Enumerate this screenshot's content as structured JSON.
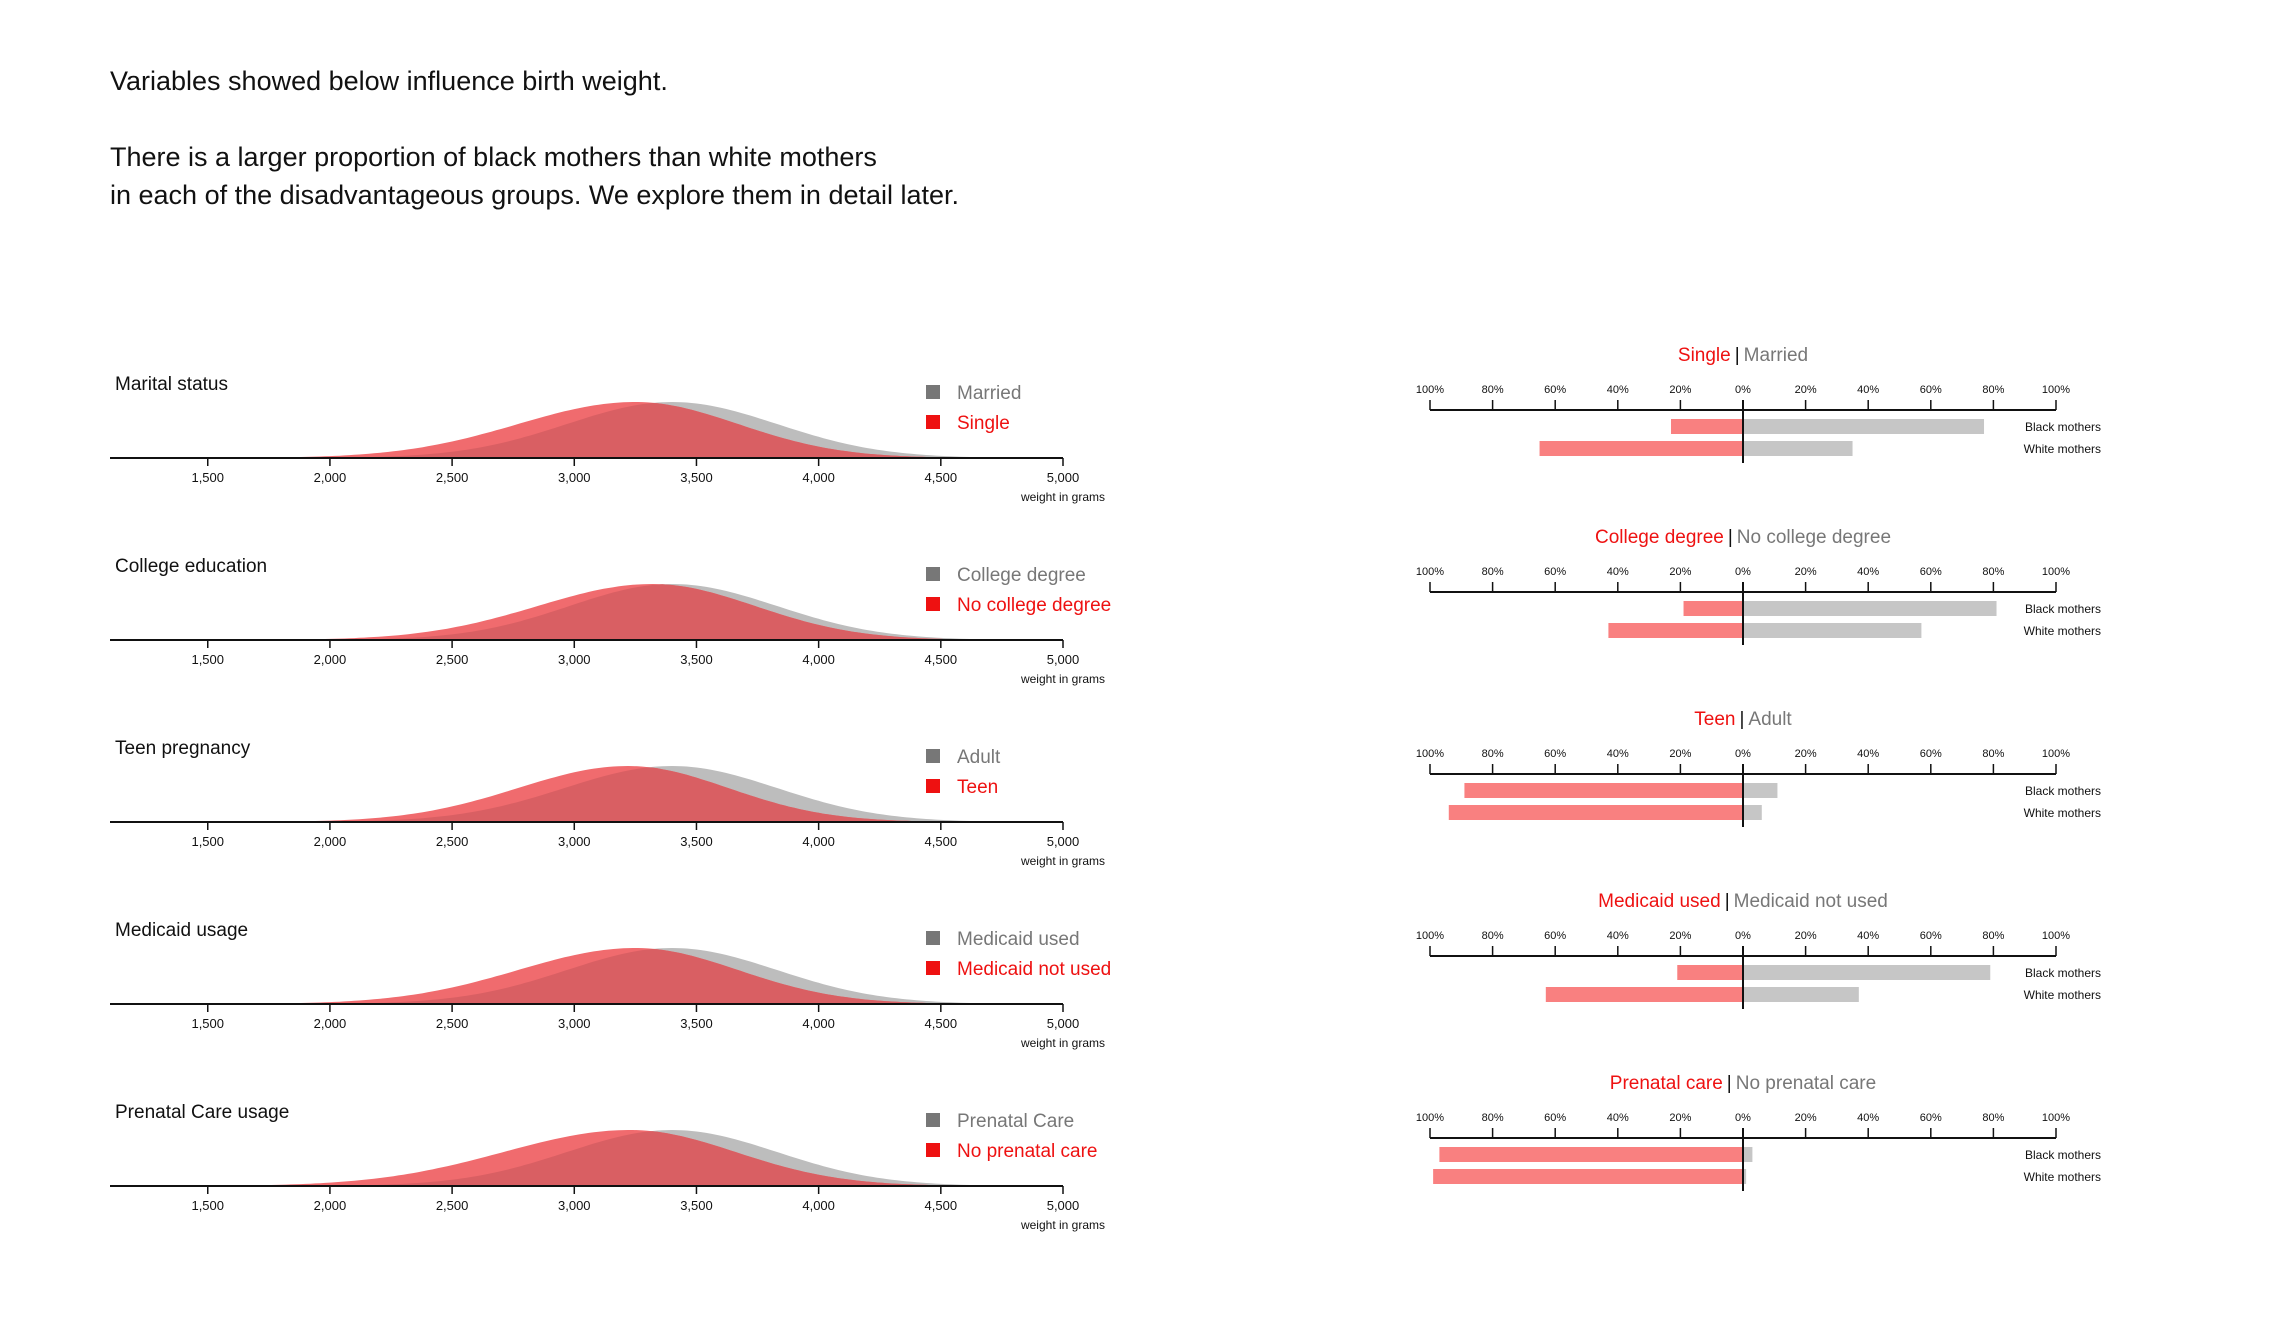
{
  "intro": {
    "line1": "Variables showed below influence birth weight.",
    "line2": "There is a larger proportion of black mothers than white mothers",
    "line3": "in each of the disadvantageous groups. We explore them in detail later."
  },
  "colors": {
    "advantaged": "#bdbdbd",
    "disadvantaged": "#f06b6e",
    "overlap": "#d95f63",
    "legend_gray": "#777777",
    "legend_red": "#ee1111",
    "bar_red": "#f98080",
    "bar_gray": "#c6c6c6"
  },
  "chart_data": [
    {
      "type": "area",
      "title": "Marital status",
      "xlabel": "weight in grams",
      "x_ticks": [
        "1,500",
        "2,000",
        "2,500",
        "3,000",
        "3,500",
        "4,000",
        "4,500",
        "5,000"
      ],
      "xlim": [
        1100,
        5000
      ],
      "series": [
        {
          "name": "Married",
          "peak": 3400,
          "sd_left": 430,
          "sd_right": 430,
          "color": "gray"
        },
        {
          "name": "Single",
          "peak": 3250,
          "sd_left": 480,
          "sd_right": 420,
          "color": "red"
        }
      ]
    },
    {
      "type": "area",
      "title": "College education",
      "xlabel": "weight in grams",
      "x_ticks": [
        "1,500",
        "2,000",
        "2,500",
        "3,000",
        "3,500",
        "4,000",
        "4,500",
        "5,000"
      ],
      "xlim": [
        1100,
        5000
      ],
      "series": [
        {
          "name": "College degree",
          "peak": 3400,
          "sd_left": 420,
          "sd_right": 430,
          "color": "gray"
        },
        {
          "name": "No college degree",
          "peak": 3320,
          "sd_left": 470,
          "sd_right": 420,
          "color": "red"
        }
      ]
    },
    {
      "type": "area",
      "title": "Teen pregnancy",
      "xlabel": "weight in grams",
      "x_ticks": [
        "1,500",
        "2,000",
        "2,500",
        "3,000",
        "3,500",
        "4,000",
        "4,500",
        "5,000"
      ],
      "xlim": [
        1100,
        5000
      ],
      "series": [
        {
          "name": "Adult",
          "peak": 3400,
          "sd_left": 440,
          "sd_right": 430,
          "color": "gray"
        },
        {
          "name": "Teen",
          "peak": 3220,
          "sd_left": 450,
          "sd_right": 410,
          "color": "red"
        }
      ]
    },
    {
      "type": "area",
      "title": "Medicaid usage",
      "xlabel": "weight in grams",
      "x_ticks": [
        "1,500",
        "2,000",
        "2,500",
        "3,000",
        "3,500",
        "4,000",
        "4,500",
        "5,000"
      ],
      "xlim": [
        1100,
        5000
      ],
      "series": [
        {
          "name": "Medicaid used",
          "peak": 3400,
          "sd_left": 430,
          "sd_right": 430,
          "color": "gray"
        },
        {
          "name": "Medicaid not used",
          "peak": 3250,
          "sd_left": 480,
          "sd_right": 420,
          "color": "red"
        }
      ]
    },
    {
      "type": "area",
      "title": "Prenatal Care usage",
      "xlabel": "weight in grams",
      "x_ticks": [
        "1,500",
        "2,000",
        "2,500",
        "3,000",
        "3,500",
        "4,000",
        "4,500",
        "5,000"
      ],
      "xlim": [
        1100,
        5000
      ],
      "series": [
        {
          "name": "Prenatal Care",
          "peak": 3400,
          "sd_left": 430,
          "sd_right": 430,
          "color": "gray"
        },
        {
          "name": "No prenatal care",
          "peak": 3230,
          "sd_left": 520,
          "sd_right": 430,
          "color": "red"
        }
      ]
    },
    {
      "type": "bar",
      "title_red": "Single",
      "title_gray": "Married",
      "x_ticks": [
        "100%",
        "80%",
        "60%",
        "40%",
        "20%",
        "0%",
        "20%",
        "40%",
        "60%",
        "80%",
        "100%"
      ],
      "categories": [
        "Black mothers",
        "White mothers"
      ],
      "series": [
        {
          "name": "Single",
          "values": [
            23,
            65
          ]
        },
        {
          "name": "Married",
          "values": [
            77,
            35
          ]
        }
      ]
    },
    {
      "type": "bar",
      "title_red": "College degree",
      "title_gray": "No college degree",
      "x_ticks": [
        "100%",
        "80%",
        "60%",
        "40%",
        "20%",
        "0%",
        "20%",
        "40%",
        "60%",
        "80%",
        "100%"
      ],
      "categories": [
        "Black mothers",
        "White mothers"
      ],
      "series": [
        {
          "name": "College degree",
          "values": [
            19,
            43
          ]
        },
        {
          "name": "No college degree",
          "values": [
            81,
            57
          ]
        }
      ]
    },
    {
      "type": "bar",
      "title_red": "Teen",
      "title_gray": "Adult",
      "x_ticks": [
        "100%",
        "80%",
        "60%",
        "40%",
        "20%",
        "0%",
        "20%",
        "40%",
        "60%",
        "80%",
        "100%"
      ],
      "categories": [
        "Black mothers",
        "White mothers"
      ],
      "series": [
        {
          "name": "Teen",
          "values": [
            89,
            94
          ]
        },
        {
          "name": "Adult",
          "values": [
            11,
            6
          ]
        }
      ]
    },
    {
      "type": "bar",
      "title_red": "Medicaid used",
      "title_gray": "Medicaid not used",
      "x_ticks": [
        "100%",
        "80%",
        "60%",
        "40%",
        "20%",
        "0%",
        "20%",
        "40%",
        "60%",
        "80%",
        "100%"
      ],
      "categories": [
        "Black mothers",
        "White mothers"
      ],
      "series": [
        {
          "name": "Medicaid used",
          "values": [
            21,
            63
          ]
        },
        {
          "name": "Medicaid not used",
          "values": [
            79,
            37
          ]
        }
      ]
    },
    {
      "type": "bar",
      "title_red": "Prenatal care",
      "title_gray": "No prenatal care",
      "x_ticks": [
        "100%",
        "80%",
        "60%",
        "40%",
        "20%",
        "0%",
        "20%",
        "40%",
        "60%",
        "80%",
        "100%"
      ],
      "categories": [
        "Black mothers",
        "White mothers"
      ],
      "series": [
        {
          "name": "Prenatal care",
          "values": [
            97,
            99
          ]
        },
        {
          "name": "No prenatal care",
          "values": [
            3,
            1
          ]
        }
      ]
    }
  ]
}
